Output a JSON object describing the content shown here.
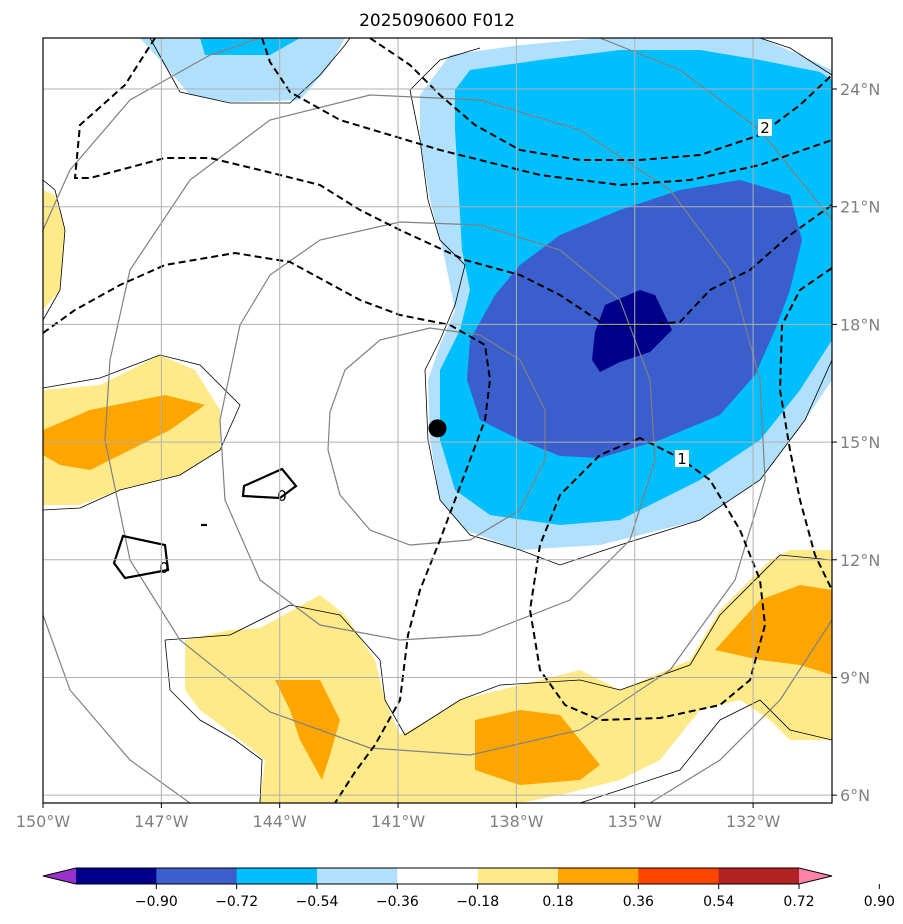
{
  "chart_data": {
    "type": "contour-map",
    "title": "2025090600 F012",
    "x_label": "",
    "y_label": "",
    "x_ticks": [
      "150°W",
      "147°W",
      "144°W",
      "141°W",
      "138°W",
      "135°W",
      "132°W"
    ],
    "x_tick_values": [
      -150,
      -147,
      -144,
      -141,
      -138,
      -135,
      -132
    ],
    "y_ticks": [
      "24°N",
      "21°N",
      "18°N",
      "15°N",
      "12°N",
      "9°N",
      "6°N"
    ],
    "y_tick_values": [
      24,
      21,
      18,
      15,
      12,
      9,
      6
    ],
    "x_range_deg": [
      -150,
      -130
    ],
    "y_range_deg": [
      5.8,
      25.3
    ],
    "grid": true,
    "storm_center": {
      "lon": -140.0,
      "lat": 15.35
    },
    "colorbar": {
      "levels": [
        -0.9,
        -0.72,
        -0.54,
        -0.36,
        -0.18,
        0.18,
        0.36,
        0.54,
        0.72,
        0.9
      ],
      "labels": [
        "−0.90",
        "−0.72",
        "−0.54",
        "−0.36",
        "−0.18",
        "0.18",
        "0.36",
        "0.54",
        "0.72",
        "0.90"
      ],
      "colors": [
        "#9932cc",
        "#00008b",
        "#3a5fcd",
        "#00bfff",
        "#b0e0fb",
        "#ffffff",
        "#ffea8a",
        "#ffa500",
        "#ff4500",
        "#b22222",
        "#ff82ab"
      ],
      "extend": "both"
    },
    "dashed_contour_labels": [
      "2",
      "1"
    ],
    "solid_contour_labels": [
      "0",
      "0"
    ]
  }
}
